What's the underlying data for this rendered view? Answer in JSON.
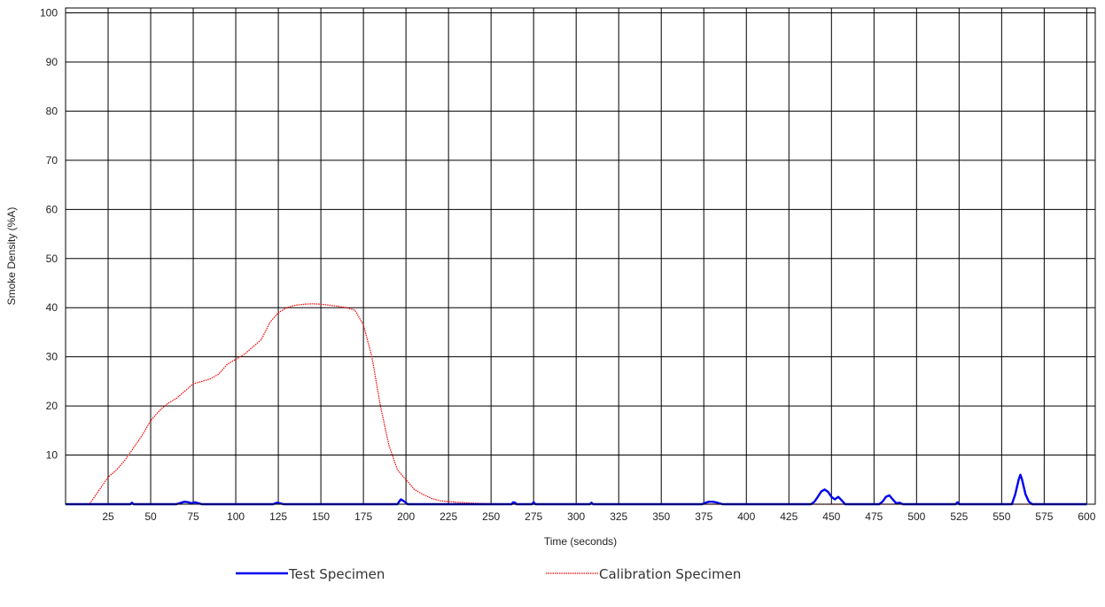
{
  "chart_data": {
    "type": "line",
    "title": "",
    "xlabel": "Time (seconds)",
    "ylabel": "Smoke Density (%A)",
    "xlim": [
      0,
      605
    ],
    "ylim": [
      0,
      101
    ],
    "xticks": [
      25,
      50,
      75,
      100,
      125,
      150,
      175,
      200,
      225,
      250,
      275,
      300,
      325,
      350,
      375,
      400,
      425,
      450,
      475,
      500,
      525,
      550,
      575,
      600
    ],
    "yticks": [
      10,
      20,
      30,
      40,
      50,
      60,
      70,
      80,
      90,
      100
    ],
    "grid": true,
    "legend_position": "bottom",
    "series": [
      {
        "name": "Test Specimen",
        "color": "#0000ee",
        "style": "solid",
        "x": [
          0,
          38,
          39,
          40,
          65,
          68,
          70,
          72,
          74,
          76,
          79,
          80,
          122,
          124,
          126,
          128,
          195,
          196,
          197,
          198,
          200,
          201,
          262,
          263,
          264,
          265,
          274,
          275,
          276,
          308,
          309,
          310,
          374,
          376,
          378,
          380,
          382,
          384,
          386,
          438,
          440,
          442,
          444,
          446,
          448,
          450,
          452,
          454,
          456,
          458,
          478,
          480,
          482,
          484,
          486,
          488,
          490,
          492,
          523,
          524,
          525,
          556,
          558,
          560,
          561,
          562,
          564,
          566,
          568,
          600
        ],
        "y": [
          0,
          0,
          0.3,
          0,
          0,
          0.3,
          0.5,
          0.4,
          0.2,
          0.4,
          0.1,
          0,
          0,
          0.3,
          0.2,
          0,
          0,
          0.5,
          1,
          0.8,
          0.3,
          0,
          0,
          0.4,
          0.3,
          0,
          0,
          0.4,
          0,
          0,
          0.3,
          0,
          0,
          0.3,
          0.5,
          0.5,
          0.4,
          0.2,
          0,
          0,
          0.5,
          1.5,
          2.6,
          3.0,
          2.5,
          1.5,
          1.0,
          1.5,
          0.8,
          0,
          0,
          0.5,
          1.5,
          1.8,
          1.0,
          0.2,
          0.3,
          0,
          0,
          0.4,
          0,
          0,
          2.0,
          5.0,
          6.0,
          5.0,
          2.0,
          0.5,
          0,
          0
        ]
      },
      {
        "name": "Calibration Specimen",
        "color": "#ee0000",
        "style": "dotted",
        "x": [
          0,
          14,
          18,
          22,
          25,
          30,
          35,
          40,
          45,
          50,
          55,
          60,
          65,
          70,
          75,
          80,
          85,
          90,
          95,
          100,
          105,
          110,
          115,
          120,
          125,
          130,
          135,
          140,
          145,
          150,
          155,
          160,
          165,
          170,
          175,
          180,
          185,
          190,
          195,
          200,
          205,
          210,
          215,
          220,
          230,
          240,
          250,
          260,
          600
        ],
        "y": [
          0,
          0,
          2,
          4,
          5.5,
          7,
          9,
          11.5,
          14,
          17,
          19,
          20.5,
          21.5,
          23,
          24.5,
          25,
          25.5,
          26.5,
          28.5,
          29.5,
          30.5,
          32,
          33.5,
          37,
          39,
          40,
          40.5,
          40.7,
          40.8,
          40.7,
          40.5,
          40.3,
          40.0,
          39.5,
          36.5,
          30,
          20,
          12,
          7,
          5,
          3,
          2,
          1.2,
          0.7,
          0.4,
          0.2,
          0.1,
          0,
          0
        ]
      }
    ]
  }
}
